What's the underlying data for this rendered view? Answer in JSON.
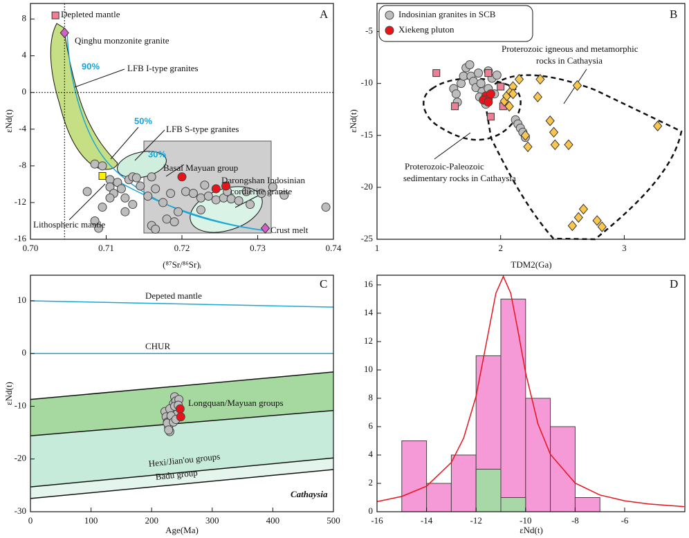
{
  "chart_data": [
    {
      "type": "scatter",
      "panel": "A",
      "x_label": "(⁸⁷Sr/⁸⁶Sr)ᵢ",
      "y_label": "εNd(t)",
      "xlim": [
        0.7,
        0.74
      ],
      "xticks": [
        {
          "value": 0.7,
          "label": "0.70"
        },
        0.71,
        0.72,
        0.73,
        0.74
      ],
      "ylim": [
        -16,
        9.7
      ],
      "yticks": [
        8,
        4,
        0,
        -4,
        -8,
        -12,
        -16
      ],
      "vlines": [
        0.7045
      ],
      "hlines": [
        0
      ],
      "annotations": [
        "Depleted mantle",
        "Qinghu monzonite granite",
        "90%",
        "LFB I-type granites",
        "50%",
        "LFB S-type granites",
        "30%",
        "Basal Mayuan group",
        "Darongshan Indosinian",
        "cordierite granite",
        "Lithospheric mantle",
        "Crust melt"
      ],
      "series": [
        {
          "marker": "circle",
          "color": "#bdbdbd",
          "x": [
            0.7085,
            0.7095,
            0.7105,
            0.7105,
            0.711,
            0.7105,
            0.7095,
            0.7075,
            0.7085,
            0.709,
            0.7115,
            0.712,
            0.7125,
            0.713,
            0.7135,
            0.714,
            0.7145,
            0.7155,
            0.716,
            0.7165,
            0.7175,
            0.716,
            0.7165,
            0.718,
            0.7185,
            0.7195,
            0.719,
            0.7205,
            0.7215,
            0.7225,
            0.7225,
            0.723,
            0.7235,
            0.7245,
            0.7255,
            0.726,
            0.7265,
            0.7275,
            0.7285,
            0.729,
            0.7305,
            0.732,
            0.7335,
            0.739,
            0.7125,
            0.7135
          ],
          "values": [
            -7.8,
            -8.0,
            -9.5,
            -10.3,
            -11.0,
            -11.5,
            -12.5,
            -10.8,
            -14.0,
            -14.8,
            -9.8,
            -10.5,
            -11.5,
            -9.5,
            -9.2,
            -9.3,
            -10.2,
            -11.3,
            -9.2,
            -10.5,
            -12.0,
            -14.5,
            -14.9,
            -13.8,
            -11.0,
            -13.0,
            -14.1,
            -10.8,
            -11.0,
            -11.5,
            -12.8,
            -10.1,
            -11.3,
            -11.7,
            -11.5,
            -10.8,
            -11.6,
            -11.8,
            -10.8,
            -12.2,
            -11.0,
            -10.3,
            -11.2,
            -12.5,
            -13.0,
            -12.2
          ]
        },
        {
          "marker": "circle",
          "color": "#e8141c",
          "x": [
            0.72,
            0.7245,
            0.7258
          ],
          "values": [
            -9.2,
            -10.5,
            -10.2
          ]
        },
        {
          "marker": "square",
          "color": "#f07f95",
          "x": [
            0.7033
          ],
          "values": [
            8.4
          ]
        },
        {
          "marker": "diamond",
          "color": "#d55fc8",
          "x": [
            0.7045
          ],
          "values": [
            6.5
          ]
        },
        {
          "marker": "square",
          "color": "#fff200",
          "x": [
            0.7095
          ],
          "values": [
            -9.1
          ]
        },
        {
          "marker": "diamond",
          "color": "#d55fc8",
          "x": [
            0.731
          ],
          "values": [
            -14.8
          ]
        }
      ]
    },
    {
      "type": "scatter",
      "panel": "B",
      "x_label": "TDM2(Ga)",
      "y_label": "εNd(t)",
      "legend": "upper left",
      "xlim": [
        1,
        3.49
      ],
      "xticks": [
        1,
        2,
        3
      ],
      "ylim": [
        -25,
        -2.3
      ],
      "yticks": [
        -5,
        -10,
        -15,
        -20,
        -25
      ],
      "annotations": [
        "Proterozoic igneous and metamorphic",
        "rocks in Cathaysia",
        "Proterozoic-Paleozoic",
        "sedimentary rocks in Cathaysia"
      ],
      "series": [
        {
          "name": "Indosinian granites in SCB",
          "marker": "circle",
          "color": "#bdbdbd",
          "x": [
            1.62,
            1.64,
            1.65,
            1.68,
            1.7,
            1.72,
            1.75,
            1.76,
            1.78,
            1.8,
            1.82,
            1.84,
            1.85,
            1.87,
            1.88,
            1.9,
            1.93,
            1.95,
            1.97,
            1.83,
            2.12,
            2.14,
            2.16,
            2.18,
            2.2,
            1.9
          ],
          "values": [
            -10.5,
            -11,
            -11.8,
            -10.0,
            -9.3,
            -8.5,
            -8.2,
            -9.3,
            -9.8,
            -10.4,
            -9.0,
            -10.0,
            -10.8,
            -11.6,
            -12.0,
            -8.8,
            -9.5,
            -11.0,
            -9.2,
            -11.3,
            -13.5,
            -13.9,
            -14.3,
            -14.7,
            -15.2,
            -10.5
          ]
        },
        {
          "name": "Xiekeng pluton",
          "marker": "circle",
          "color": "#e8141c",
          "x": [
            1.88,
            1.9,
            1.92,
            1.86,
            1.9
          ],
          "values": [
            -11.2,
            -11.5,
            -11.0,
            -11.6,
            -11.8
          ]
        },
        {
          "marker": "square",
          "color": "#f07f95",
          "x": [
            1.48,
            1.63,
            1.92,
            2.0,
            1.9,
            2.02
          ],
          "values": [
            -9.0,
            -12.2,
            -13.2,
            -10.3,
            -9.0,
            -12.2
          ]
        },
        {
          "marker": "diamond",
          "color": "#f9c74f",
          "x": [
            2.03,
            2.05,
            2.08,
            2.1,
            2.15,
            2.07,
            2.1,
            2.3,
            2.4,
            2.43,
            2.44,
            2.55,
            2.2,
            2.22,
            2.32,
            2.62,
            2.67,
            2.63,
            2.58,
            2.78,
            2.82,
            3.27
          ],
          "values": [
            -11.7,
            -11.2,
            -10.8,
            -10.3,
            -9.6,
            -12.2,
            -11.0,
            -11.3,
            -13.6,
            -14.7,
            -15.9,
            -15.9,
            -15.0,
            -16.1,
            -9.6,
            -10.2,
            -22.1,
            -22.9,
            -23.7,
            -23.2,
            -23.8,
            -14.1
          ]
        }
      ]
    },
    {
      "type": "line",
      "panel": "C",
      "x_label": "Age(Ma)",
      "y_label": "εNd(t)",
      "xlim": [
        0,
        500
      ],
      "xticks": [
        0,
        100,
        200,
        300,
        400,
        500
      ],
      "ylim": [
        -30,
        14.85
      ],
      "yticks": [
        10,
        0,
        -10,
        -20,
        -30
      ],
      "annotations": [
        "Longquan/Mayuan groups",
        "Hexi/Jian'ou groups",
        "Badu group",
        "Cathaysia"
      ],
      "series": [
        {
          "name": "Depeted mantle",
          "color": "#1ca6d6",
          "x": [
            0,
            500
          ],
          "values": [
            10,
            8.8
          ]
        },
        {
          "name": "CHUR",
          "color": "#1ca6d6",
          "x": [
            0,
            500
          ],
          "values": [
            0,
            0
          ]
        },
        {
          "color": "#111111",
          "fill": "#a6d9a0",
          "x": [
            0,
            500
          ],
          "values": [
            -8.7,
            -3.5
          ]
        },
        {
          "color": "#111111",
          "fill": "#c7ebdb",
          "x": [
            0,
            500
          ],
          "values": [
            -15.6,
            -10.8
          ]
        },
        {
          "color": "#111111",
          "fill": "#e3f5ec",
          "x": [
            0,
            500
          ],
          "values": [
            -25.3,
            -19.8
          ]
        },
        {
          "color": "#111111",
          "x": [
            0,
            500
          ],
          "values": [
            -27.5,
            -22
          ]
        },
        {
          "marker": "circle",
          "color": "#bdbdbd",
          "x": [
            222,
            224,
            226,
            228,
            230,
            232,
            234,
            236,
            238,
            240,
            226,
            230,
            234,
            238,
            242,
            245,
            228,
            232,
            236,
            240,
            244
          ],
          "values": [
            -11,
            -12,
            -13,
            -14,
            -14.8,
            -12.5,
            -11,
            -9.5,
            -8.2,
            -9,
            -13.2,
            -10.5,
            -12,
            -10,
            -11.5,
            -8.7,
            -14.5,
            -11.8,
            -13,
            -12.5,
            -9.8
          ]
        },
        {
          "marker": "circle",
          "color": "#e8141c",
          "x": [
            247,
            248
          ],
          "values": [
            -10.5,
            -12
          ]
        }
      ]
    },
    {
      "type": "histogram",
      "panel": "D",
      "x_label": "εNd(t)",
      "xlim": [
        -16,
        -3.57
      ],
      "xticks": [
        -16,
        -14,
        -12,
        -10,
        -8,
        -6
      ],
      "ylim": [
        0,
        16.68
      ],
      "yticks": [
        0,
        2,
        4,
        6,
        8,
        10,
        12,
        14,
        16
      ],
      "bins": [
        -15,
        -14,
        -13,
        -12,
        -11,
        -10,
        -9,
        -8,
        -7
      ],
      "series": [
        {
          "color": "#f59ad6",
          "values": [
            5,
            2,
            4,
            11,
            15,
            8,
            6,
            1
          ]
        },
        {
          "color": "#a8d8a8",
          "values": [
            0,
            0,
            0,
            3,
            1,
            0,
            0,
            0
          ]
        }
      ],
      "curve": {
        "color": "#e8141c",
        "x": [
          -16,
          -15,
          -14,
          -13,
          -12.5,
          -12,
          -11.5,
          -11.2,
          -10.9,
          -10.6,
          -10.3,
          -10,
          -9.5,
          -9,
          -8,
          -7,
          -6,
          -5,
          -3.6
        ],
        "values": [
          0.71,
          1.08,
          1.8,
          3.47,
          5.2,
          8.15,
          12.68,
          15.41,
          16.6,
          15.41,
          12.68,
          9.8,
          6.19,
          4.05,
          2.02,
          1.18,
          0.77,
          0.54,
          0.36
        ]
      }
    }
  ]
}
